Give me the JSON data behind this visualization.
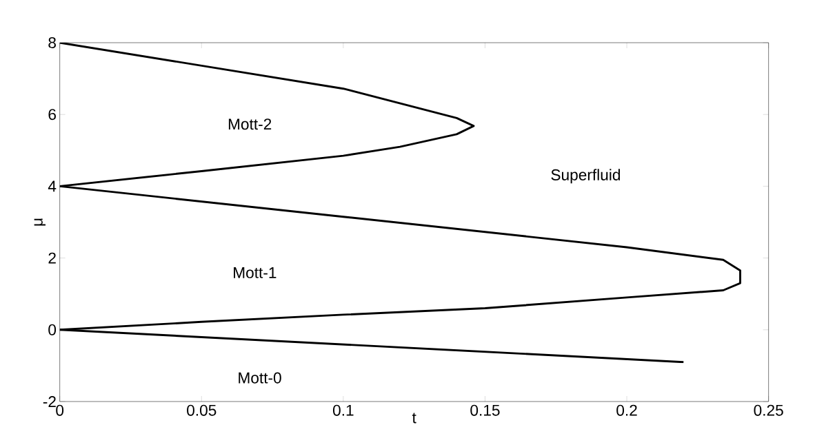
{
  "chart_data": {
    "type": "line",
    "xlabel": "t",
    "ylabel": "μ",
    "xlim": [
      0,
      0.25
    ],
    "ylim": [
      -2,
      8
    ],
    "xticks": [
      0,
      0.05,
      0.1,
      0.15,
      0.2,
      0.25
    ],
    "yticks": [
      -2,
      0,
      2,
      4,
      6,
      8
    ],
    "grid": false,
    "marker": "none",
    "line_style": "solid",
    "series": [
      {
        "color": "#000000",
        "x": [
          0,
          0.1,
          0.14,
          0.146,
          0.14,
          0.12,
          0.1,
          0.05,
          0
        ],
        "values": [
          8,
          6.72,
          5.9,
          5.68,
          5.45,
          5.1,
          4.85,
          4.42,
          4
        ]
      },
      {
        "color": "#000000",
        "x": [
          0,
          0.1,
          0.2,
          0.234,
          0.24,
          0.24,
          0.234,
          0.2,
          0.15,
          0.1,
          0.05,
          0
        ],
        "values": [
          4,
          3.15,
          2.3,
          1.95,
          1.65,
          1.3,
          1.1,
          0.9,
          0.6,
          0.42,
          0.22,
          0
        ]
      },
      {
        "color": "#000000",
        "x": [
          0,
          0.22
        ],
        "values": [
          0,
          -0.9
        ]
      }
    ],
    "annotations": [
      "Mott-2",
      "Superfluid",
      "Mott-1",
      "Mott-0"
    ]
  }
}
